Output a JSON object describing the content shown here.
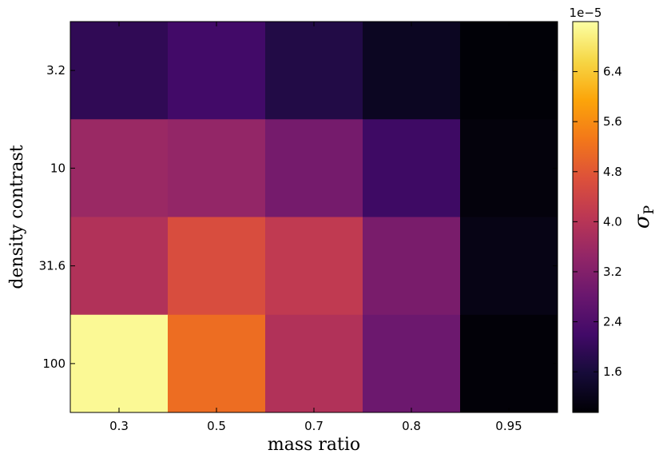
{
  "chart_data": {
    "type": "heatmap",
    "xlabel": "mass ratio",
    "ylabel": "density contrast",
    "x_categories": [
      "0.3",
      "0.5",
      "0.7",
      "0.8",
      "0.95"
    ],
    "y_categories": [
      "3.2",
      "10",
      "31.6",
      "100"
    ],
    "values": [
      [
        1.95e-05,
        2.2e-05,
        1.75e-05,
        1.3e-05,
        9.8e-06
      ],
      [
        3.55e-05,
        3.45e-05,
        3e-05,
        2.15e-05,
        1.05e-05
      ],
      [
        3.9e-05,
        4.6e-05,
        4.15e-05,
        3.05e-05,
        1.15e-05
      ],
      [
        7.1e-05,
        5.15e-05,
        3.9e-05,
        2.85e-05,
        1e-05
      ]
    ],
    "colorbar": {
      "label": "σ",
      "label_subscript": "P",
      "exponent_label": "1e−5",
      "ticks": [
        "1.6",
        "2.4",
        "3.2",
        "4.0",
        "4.8",
        "5.6",
        "6.4"
      ],
      "tick_values": [
        1.6,
        2.4,
        3.2,
        4.0,
        4.8,
        5.6,
        6.4
      ],
      "range": [
        0.95,
        7.2
      ],
      "colormap": "inferno"
    },
    "grid": false
  }
}
